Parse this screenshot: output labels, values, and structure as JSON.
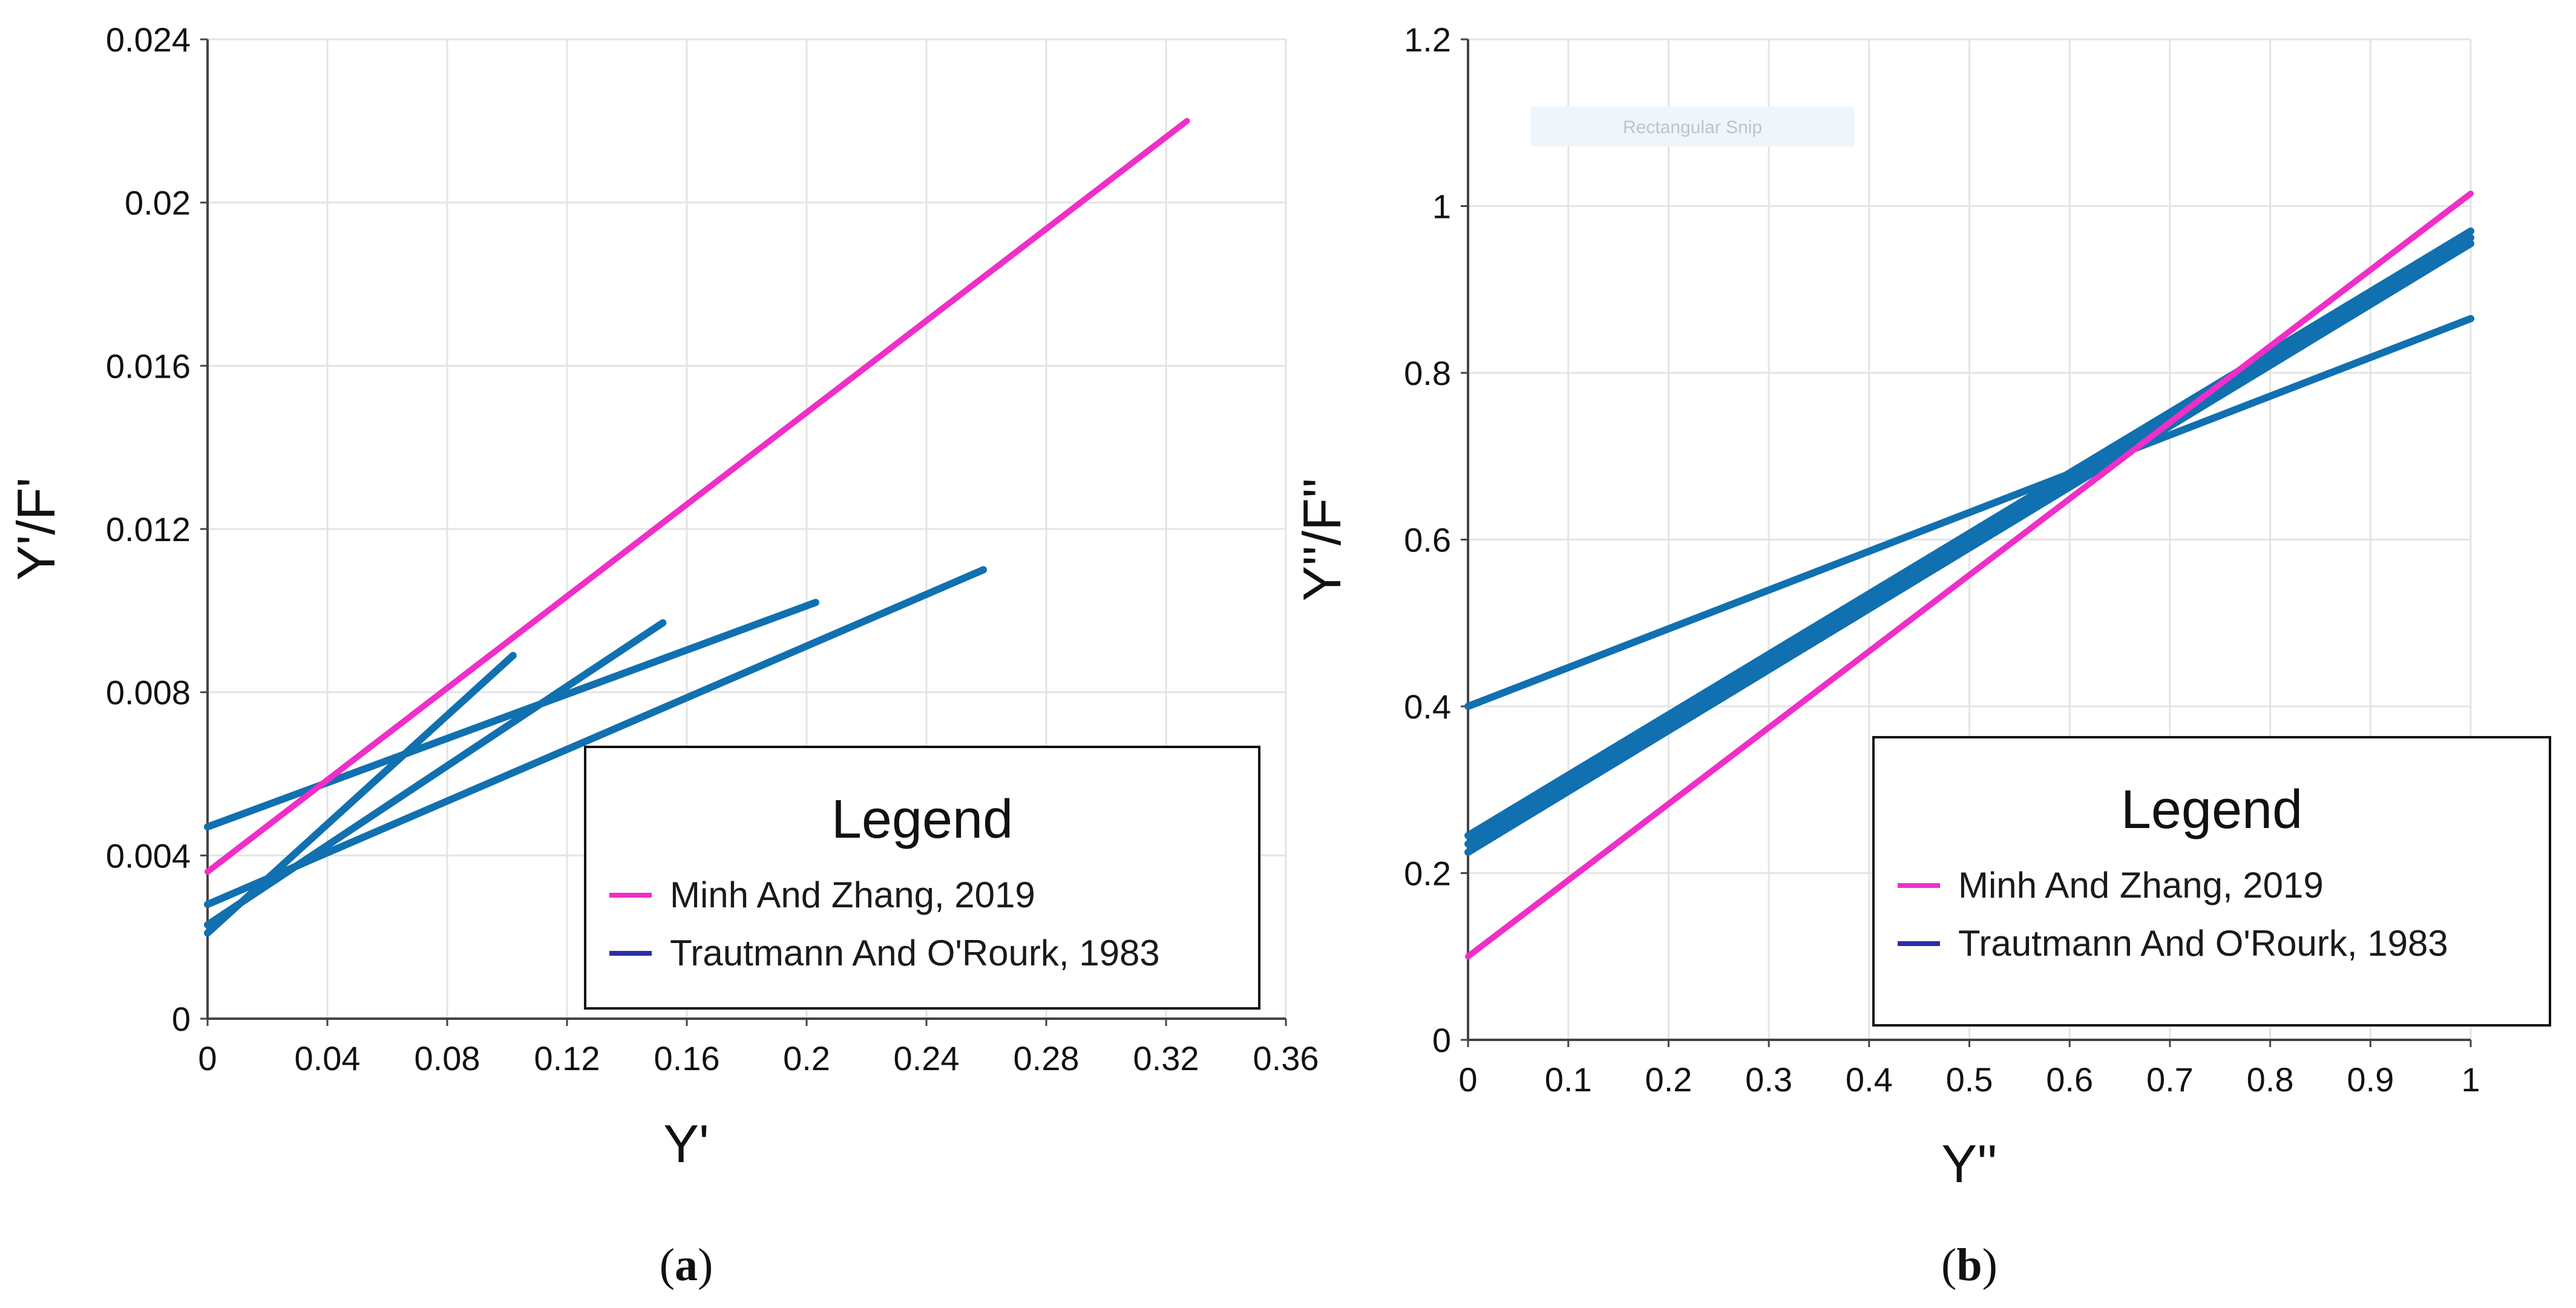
{
  "colors": {
    "minh": "#f02ec8",
    "trautmann": "#1170b0",
    "legend_trautmann_swatch": "#2b2fa6",
    "grid": "#e4e4e4",
    "axis": "#444444",
    "watermark_bg": "#eef5fb"
  },
  "chart_data": [
    {
      "type": "line",
      "panel": "a",
      "caption_letter": "a",
      "xlabel": "Y'",
      "ylabel": "Y'/F'",
      "xlim": [
        0,
        0.36
      ],
      "ylim": [
        0,
        0.024
      ],
      "xticks": [
        0,
        0.04,
        0.08,
        0.12,
        0.16,
        0.2,
        0.24,
        0.28,
        0.32,
        0.36
      ],
      "xtick_labels": [
        "0",
        "0.04",
        "0.08",
        "0.12",
        "0.16",
        "0.2",
        "0.24",
        "0.28",
        "0.32",
        "0.36"
      ],
      "yticks": [
        0,
        0.004,
        0.008,
        0.012,
        0.016,
        0.02,
        0.024
      ],
      "ytick_labels": [
        "0",
        "0.004",
        "0.008",
        "0.012",
        "0.016",
        "0.02",
        "0.024"
      ],
      "grid": true,
      "legend": {
        "title": "Legend",
        "position": "bottom-right",
        "entries": [
          "Minh And Zhang, 2019",
          "Trautmann And O'Rourk, 1983"
        ]
      },
      "series": [
        {
          "name": "Minh And Zhang, 2019",
          "group": "minh",
          "x": [
            0,
            0.327
          ],
          "y": [
            0.0036,
            0.022
          ]
        },
        {
          "name": "Trautmann And O'Rourk, 1983",
          "group": "trautmann",
          "x": [
            0,
            0.102
          ],
          "y": [
            0.0021,
            0.0089
          ]
        },
        {
          "name": "Trautmann And O'Rourk, 1983",
          "group": "trautmann",
          "x": [
            0,
            0.152
          ],
          "y": [
            0.0023,
            0.0097
          ]
        },
        {
          "name": "Trautmann And O'Rourk, 1983",
          "group": "trautmann",
          "x": [
            0,
            0.203
          ],
          "y": [
            0.0047,
            0.0102
          ]
        },
        {
          "name": "Trautmann And O'Rourk, 1983",
          "group": "trautmann",
          "x": [
            0,
            0.259
          ],
          "y": [
            0.0028,
            0.011
          ]
        }
      ]
    },
    {
      "type": "line",
      "panel": "b",
      "caption_letter": "b",
      "xlabel": "Y''",
      "ylabel": "Y''/F''",
      "xlim": [
        0,
        1
      ],
      "ylim": [
        0,
        1.2
      ],
      "xticks": [
        0,
        0.1,
        0.2,
        0.3,
        0.4,
        0.5,
        0.6,
        0.7,
        0.8,
        0.9,
        1
      ],
      "xtick_labels": [
        "0",
        "0.1",
        "0.2",
        "0.3",
        "0.4",
        "0.5",
        "0.6",
        "0.7",
        "0.8",
        "0.9",
        "1"
      ],
      "yticks": [
        0,
        0.2,
        0.4,
        0.6,
        0.8,
        1,
        1.2
      ],
      "ytick_labels": [
        "0",
        "0.2",
        "0.4",
        "0.6",
        "0.8",
        "1",
        "1.2"
      ],
      "grid": true,
      "watermark": "Rectangular Snip",
      "legend": {
        "title": "Legend",
        "position": "bottom-right",
        "entries": [
          "Minh And Zhang, 2019",
          "Trautmann And O'Rourk, 1983"
        ]
      },
      "series": [
        {
          "name": "Minh And Zhang, 2019",
          "group": "minh",
          "x": [
            0,
            1
          ],
          "y": [
            0.1,
            1.015
          ]
        },
        {
          "name": "Trautmann And O'Rourk, 1983",
          "group": "trautmann",
          "x": [
            0,
            1
          ],
          "y": [
            0.4,
            0.865
          ]
        },
        {
          "name": "Trautmann And O'Rourk, 1983",
          "group": "trautmann",
          "x": [
            0,
            1
          ],
          "y": [
            0.225,
            0.955
          ]
        },
        {
          "name": "Trautmann And O'Rourk, 1983",
          "group": "trautmann",
          "x": [
            0,
            1
          ],
          "y": [
            0.235,
            0.962
          ]
        },
        {
          "name": "Trautmann And O'Rourk, 1983",
          "group": "trautmann",
          "x": [
            0,
            1
          ],
          "y": [
            0.245,
            0.97
          ]
        }
      ]
    }
  ]
}
